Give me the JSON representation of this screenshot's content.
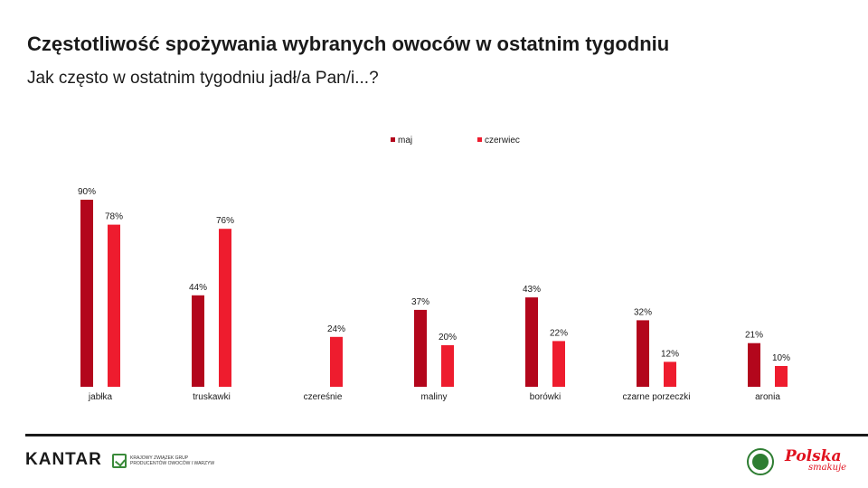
{
  "header": {
    "title": "Częstotliwość spożywania wybranych owoców w ostatnim tygodniu",
    "subtitle": "Jak często w ostatnim tygodniu jadł/a Pan/i...?"
  },
  "chart_data": {
    "type": "bar",
    "categories": [
      "jabłka",
      "truskawki",
      "czereśnie",
      "maliny",
      "borówki",
      "czarne porzeczki",
      "aronia"
    ],
    "series": [
      {
        "name": "maj",
        "color": "#b3061c",
        "values": [
          90,
          44,
          null,
          37,
          43,
          32,
          21
        ]
      },
      {
        "name": "czerwiec",
        "color": "#ee1c2e",
        "values": [
          78,
          76,
          24,
          20,
          22,
          12,
          10
        ]
      }
    ],
    "value_suffix": "%",
    "ylim": [
      0,
      100
    ],
    "legend_position": "top-center",
    "grid": false
  },
  "footer": {
    "brand": "KANTAR",
    "partner_text": "Krajowy Związek Grup Producentów Owoców i Warzyw",
    "logo_main": "Polska",
    "logo_sub": "smakuje"
  }
}
